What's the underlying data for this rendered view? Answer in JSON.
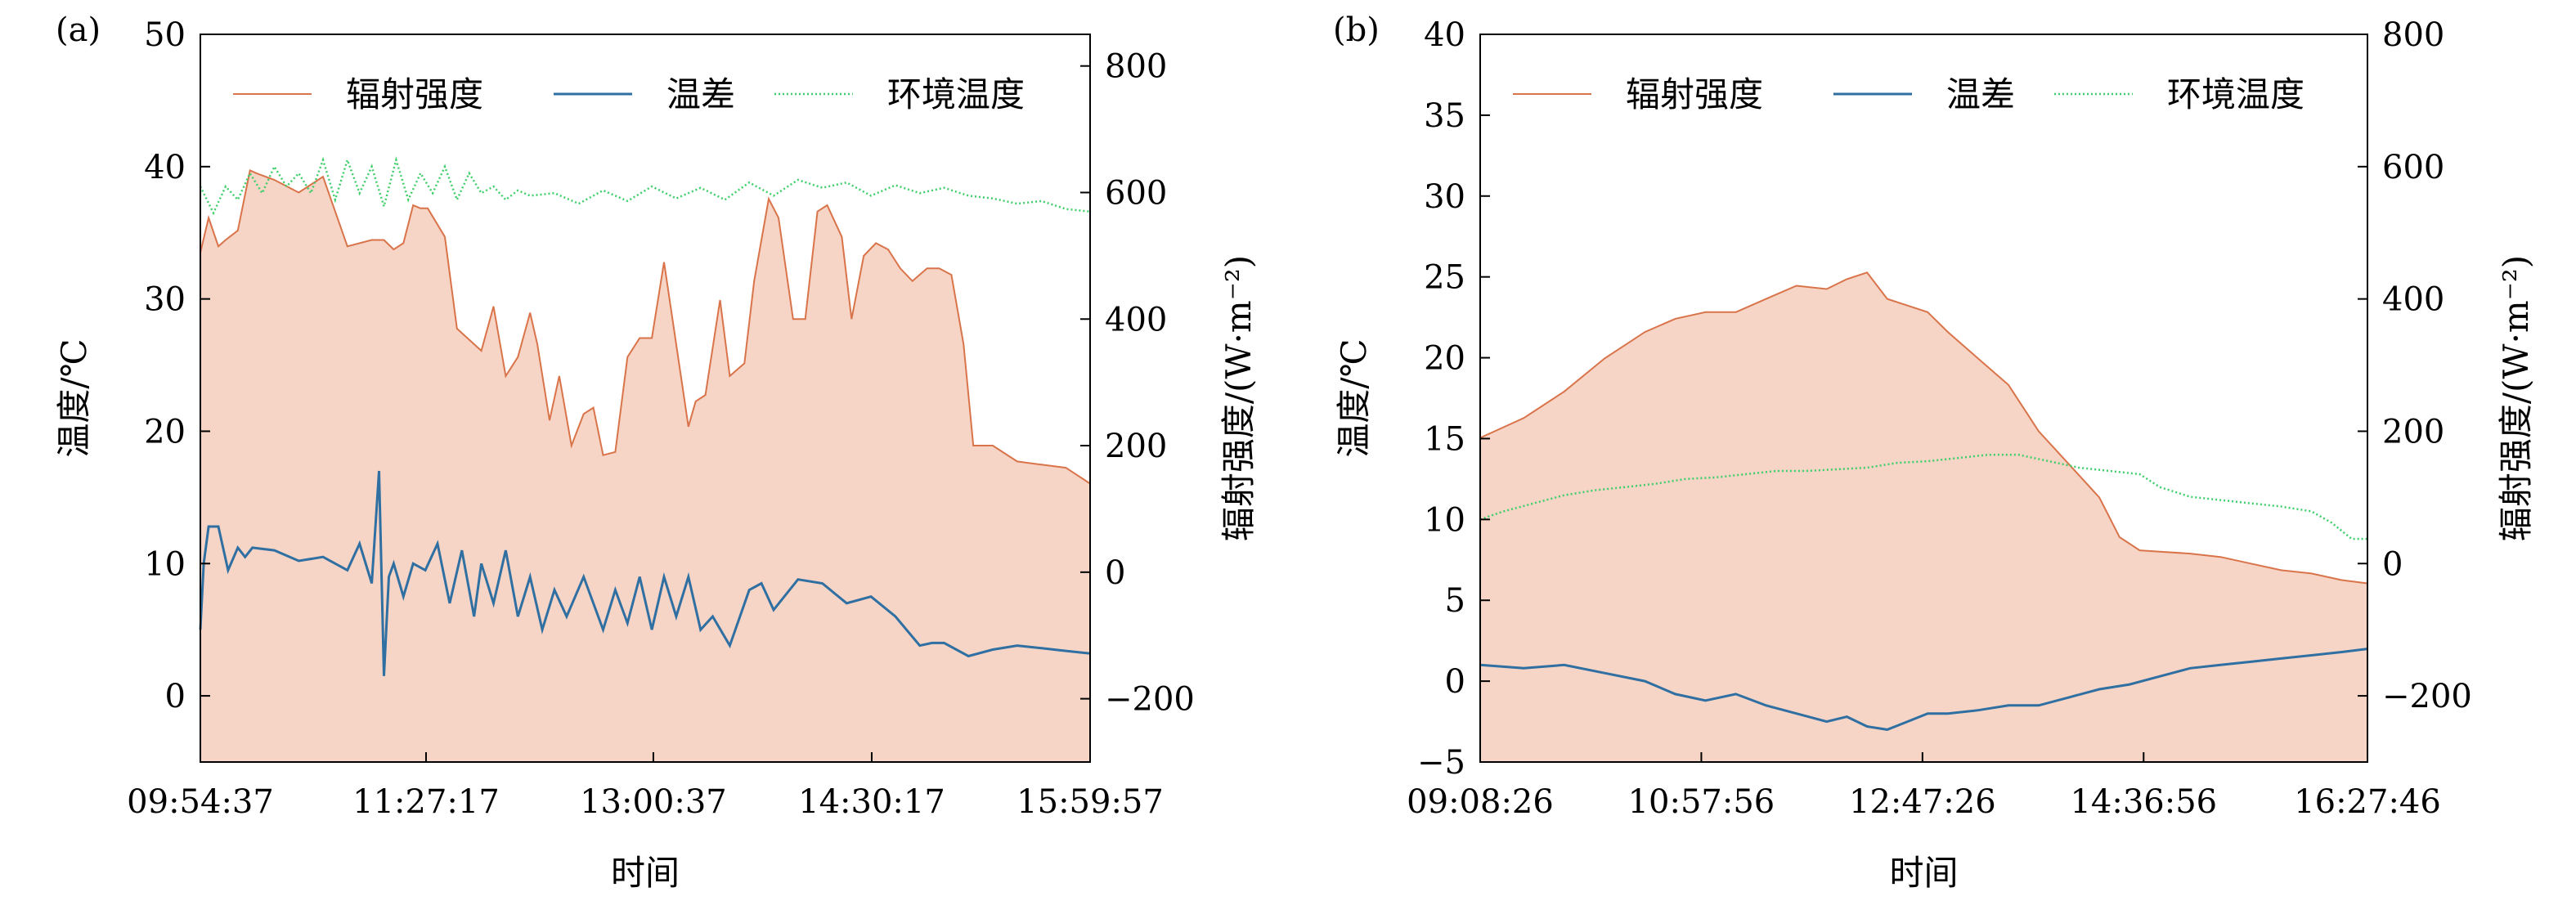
{
  "colors": {
    "radiation_line": "#d9744a",
    "radiation_fill": "#f6d5c6",
    "temp_diff": "#2f6fa2",
    "ambient": "#3fcf6a",
    "axis": "#000000"
  },
  "chart_data": [
    {
      "type": "line",
      "panel_label": "(a)",
      "xlabel": "时间",
      "ylabel_left": "温度/℃",
      "ylabel_right": "辐射强度/(W·m⁻²)",
      "ylim_left": [
        -5,
        50
      ],
      "ylim_right": [
        -300,
        850
      ],
      "yticks_left": [
        0,
        10,
        20,
        30,
        40,
        50
      ],
      "yticks_right": [
        -200,
        0,
        200,
        400,
        600,
        800
      ],
      "yticklabels_left": [
        "0",
        "10",
        "20",
        "30",
        "40",
        "50"
      ],
      "yticklabels_right": [
        "−200",
        "0",
        "200",
        "400",
        "600",
        "800"
      ],
      "x_start": "09:54:37",
      "x_end": "15:59:57",
      "xticks": [
        "09:54:37",
        "11:27:17",
        "13:00:37",
        "14:30:17",
        "15:59:57"
      ],
      "legend": [
        "辐射强度",
        "温差",
        "环境温度"
      ],
      "legend_position": "top",
      "grid": false,
      "series": [
        {
          "name": "辐射强度",
          "axis": "right",
          "style": "line+fill",
          "x": [
            "09:54:37",
            "09:58:00",
            "10:02:00",
            "10:05:00",
            "10:10:00",
            "10:15:00",
            "10:18:00",
            "10:25:00",
            "10:35:00",
            "10:45:00",
            "10:50:00",
            "10:55:00",
            "11:05:00",
            "11:10:00",
            "11:14:00",
            "11:18:00",
            "11:22:00",
            "11:25:00",
            "11:28:00",
            "11:35:00",
            "11:40:00",
            "11:50:00",
            "11:55:00",
            "12:00:00",
            "12:05:00",
            "12:10:00",
            "12:13:00",
            "12:18:00",
            "12:22:00",
            "12:27:00",
            "12:32:00",
            "12:36:00",
            "12:40:00",
            "12:45:00",
            "12:50:00",
            "12:55:00",
            "13:00:00",
            "13:05:00",
            "13:10:00",
            "13:15:00",
            "13:18:00",
            "13:22:00",
            "13:28:00",
            "13:32:00",
            "13:38:00",
            "13:42:00",
            "13:48:00",
            "13:52:00",
            "13:58:00",
            "14:03:00",
            "14:08:00",
            "14:12:00",
            "14:18:00",
            "14:22:00",
            "14:27:00",
            "14:32:00",
            "14:37:00",
            "14:42:00",
            "14:47:00",
            "14:53:00",
            "14:58:00",
            "15:03:00",
            "15:08:00",
            "15:12:00",
            "15:20:00",
            "15:30:00",
            "15:40:00",
            "15:50:00",
            "15:59:57"
          ],
          "values": [
            505,
            560,
            515,
            525,
            540,
            635,
            630,
            620,
            600,
            625,
            570,
            515,
            525,
            525,
            510,
            520,
            580,
            575,
            575,
            530,
            385,
            350,
            420,
            310,
            340,
            410,
            360,
            240,
            310,
            200,
            250,
            260,
            185,
            190,
            340,
            370,
            370,
            490,
            360,
            230,
            270,
            280,
            430,
            310,
            330,
            460,
            590,
            560,
            400,
            400,
            570,
            580,
            530,
            400,
            500,
            520,
            510,
            480,
            460,
            480,
            480,
            470,
            360,
            200,
            200,
            175,
            170,
            165,
            140
          ]
        },
        {
          "name": "温差",
          "axis": "left",
          "style": "line",
          "x": [
            "09:54:37",
            "09:56:00",
            "09:58:00",
            "10:02:00",
            "10:06:00",
            "10:10:00",
            "10:13:00",
            "10:16:00",
            "10:25:00",
            "10:35:00",
            "10:45:00",
            "10:55:00",
            "11:00:00",
            "11:05:00",
            "11:08:00",
            "11:10:00",
            "11:12:00",
            "11:14:00",
            "11:18:00",
            "11:22:00",
            "11:27:00",
            "11:32:00",
            "11:37:00",
            "11:42:00",
            "11:47:00",
            "11:50:00",
            "11:55:00",
            "12:00:00",
            "12:05:00",
            "12:10:00",
            "12:15:00",
            "12:20:00",
            "12:25:00",
            "12:32:00",
            "12:40:00",
            "12:45:00",
            "12:50:00",
            "12:55:00",
            "13:00:00",
            "13:05:00",
            "13:10:00",
            "13:15:00",
            "13:20:00",
            "13:25:00",
            "13:32:00",
            "13:40:00",
            "13:45:00",
            "13:50:00",
            "14:00:00",
            "14:10:00",
            "14:20:00",
            "14:30:00",
            "14:40:00",
            "14:50:00",
            "14:55:00",
            "15:00:00",
            "15:10:00",
            "15:20:00",
            "15:30:00",
            "15:40:00",
            "15:50:00",
            "15:59:57"
          ],
          "values": [
            5,
            10,
            12.8,
            12.8,
            9.5,
            11.2,
            10.5,
            11.2,
            11,
            10.2,
            10.5,
            9.5,
            11.5,
            8.5,
            17,
            1.5,
            9,
            10,
            7.5,
            10,
            9.5,
            11.5,
            7,
            11,
            6,
            10,
            7,
            11,
            6,
            9,
            5,
            8,
            6,
            9,
            5,
            8,
            5.5,
            9,
            5,
            9,
            6,
            9,
            5,
            6,
            3.8,
            8,
            8.5,
            6.5,
            8.8,
            8.5,
            7,
            7.5,
            6,
            3.8,
            4,
            4,
            3,
            3.5,
            3.8,
            3.6,
            3.4,
            3.2
          ]
        },
        {
          "name": "环境温度",
          "axis": "left",
          "style": "dotted",
          "x": [
            "09:54:37",
            "10:00:00",
            "10:05:00",
            "10:10:00",
            "10:15:00",
            "10:20:00",
            "10:25:00",
            "10:30:00",
            "10:35:00",
            "10:40:00",
            "10:45:00",
            "10:50:00",
            "10:55:00",
            "11:00:00",
            "11:05:00",
            "11:10:00",
            "11:15:00",
            "11:20:00",
            "11:25:00",
            "11:30:00",
            "11:35:00",
            "11:40:00",
            "11:45:00",
            "11:50:00",
            "11:55:00",
            "12:00:00",
            "12:05:00",
            "12:10:00",
            "12:20:00",
            "12:30:00",
            "12:40:00",
            "12:50:00",
            "13:00:00",
            "13:10:00",
            "13:20:00",
            "13:30:00",
            "13:40:00",
            "13:50:00",
            "14:00:00",
            "14:10:00",
            "14:20:00",
            "14:30:00",
            "14:40:00",
            "14:50:00",
            "15:00:00",
            "15:10:00",
            "15:20:00",
            "15:30:00",
            "15:40:00",
            "15:50:00",
            "15:59:57"
          ],
          "values": [
            38.5,
            36.5,
            38.5,
            37.5,
            39.5,
            38,
            40,
            38.5,
            39.5,
            38,
            40.5,
            37.5,
            40.5,
            38,
            40,
            37,
            40.5,
            37.5,
            39.5,
            38,
            40,
            37.5,
            39.5,
            38,
            38.5,
            37.5,
            38.2,
            37.8,
            38,
            37.2,
            38.2,
            37.4,
            38.5,
            37.6,
            38.4,
            37.5,
            38.8,
            37.8,
            39,
            38.4,
            38.8,
            37.8,
            38.6,
            38,
            38.4,
            37.8,
            37.6,
            37.2,
            37.4,
            36.8,
            36.6
          ]
        }
      ]
    },
    {
      "type": "line",
      "panel_label": "(b)",
      "xlabel": "时间",
      "ylabel_left": "温度/℃",
      "ylabel_right": "辐射强度/(W·m⁻²)",
      "ylim_left": [
        -5,
        40
      ],
      "ylim_right": [
        -300,
        800
      ],
      "yticks_left": [
        -5,
        0,
        5,
        10,
        15,
        20,
        25,
        30,
        35,
        40
      ],
      "yticks_right": [
        -200,
        0,
        200,
        400,
        600,
        800
      ],
      "yticklabels_left": [
        "−5",
        "0",
        "5",
        "10",
        "15",
        "20",
        "25",
        "30",
        "35",
        "40"
      ],
      "yticklabels_right": [
        "−200",
        "0",
        "200",
        "400",
        "600",
        "800"
      ],
      "x_start": "09:08:26",
      "x_end": "16:27:46",
      "xticks": [
        "09:08:26",
        "10:57:56",
        "12:47:26",
        "14:36:56",
        "16:27:46"
      ],
      "legend": [
        "辐射强度",
        "温差",
        "环境温度"
      ],
      "legend_position": "top",
      "grid": false,
      "series": [
        {
          "name": "辐射强度",
          "axis": "right",
          "style": "line+fill",
          "x": [
            "09:08:26",
            "09:30:00",
            "09:50:00",
            "10:10:00",
            "10:30:00",
            "10:45:00",
            "11:00:00",
            "11:15:00",
            "11:30:00",
            "11:45:00",
            "12:00:00",
            "12:10:00",
            "12:20:00",
            "12:30:00",
            "12:40:00",
            "12:50:00",
            "13:00:00",
            "13:15:00",
            "13:30:00",
            "13:45:00",
            "14:00:00",
            "14:15:00",
            "14:25:00",
            "14:35:00",
            "14:45:00",
            "15:00:00",
            "15:15:00",
            "15:30:00",
            "15:45:00",
            "16:00:00",
            "16:15:00",
            "16:27:46"
          ],
          "values": [
            190,
            220,
            260,
            310,
            350,
            370,
            380,
            380,
            400,
            420,
            415,
            430,
            440,
            400,
            390,
            380,
            350,
            310,
            270,
            200,
            150,
            100,
            40,
            20,
            18,
            15,
            10,
            0,
            -10,
            -15,
            -25,
            -30
          ]
        },
        {
          "name": "温差",
          "axis": "left",
          "style": "line",
          "x": [
            "09:08:26",
            "09:30:00",
            "09:50:00",
            "10:10:00",
            "10:30:00",
            "10:45:00",
            "11:00:00",
            "11:15:00",
            "11:30:00",
            "11:45:00",
            "12:00:00",
            "12:10:00",
            "12:20:00",
            "12:30:00",
            "12:40:00",
            "12:50:00",
            "13:00:00",
            "13:15:00",
            "13:30:00",
            "13:45:00",
            "14:00:00",
            "14:15:00",
            "14:30:00",
            "14:45:00",
            "15:00:00",
            "15:15:00",
            "15:30:00",
            "15:45:00",
            "16:00:00",
            "16:15:00",
            "16:27:46"
          ],
          "values": [
            1,
            0.8,
            1,
            0.5,
            0,
            -0.8,
            -1.2,
            -0.8,
            -1.5,
            -2,
            -2.5,
            -2.2,
            -2.8,
            -3,
            -2.5,
            -2,
            -2,
            -1.8,
            -1.5,
            -1.5,
            -1,
            -0.5,
            -0.2,
            0.3,
            0.8,
            1,
            1.2,
            1.4,
            1.6,
            1.8,
            2
          ]
        },
        {
          "name": "环境温度",
          "axis": "left",
          "style": "dotted",
          "x": [
            "09:08:26",
            "09:20:00",
            "09:35:00",
            "09:50:00",
            "10:05:00",
            "10:20:00",
            "10:35:00",
            "10:50:00",
            "11:05:00",
            "11:20:00",
            "11:35:00",
            "11:50:00",
            "12:05:00",
            "12:20:00",
            "12:35:00",
            "12:50:00",
            "13:05:00",
            "13:20:00",
            "13:35:00",
            "13:50:00",
            "14:05:00",
            "14:20:00",
            "14:35:00",
            "14:45:00",
            "15:00:00",
            "15:15:00",
            "15:30:00",
            "15:45:00",
            "16:00:00",
            "16:10:00",
            "16:20:00",
            "16:27:46"
          ],
          "values": [
            10,
            10.5,
            11,
            11.5,
            11.8,
            12,
            12.2,
            12.5,
            12.6,
            12.8,
            13,
            13,
            13.1,
            13.2,
            13.5,
            13.6,
            13.8,
            14,
            14,
            13.6,
            13.2,
            13,
            12.8,
            12,
            11.4,
            11.2,
            11,
            10.8,
            10.5,
            9.8,
            8.8,
            8.8
          ]
        }
      ]
    }
  ]
}
